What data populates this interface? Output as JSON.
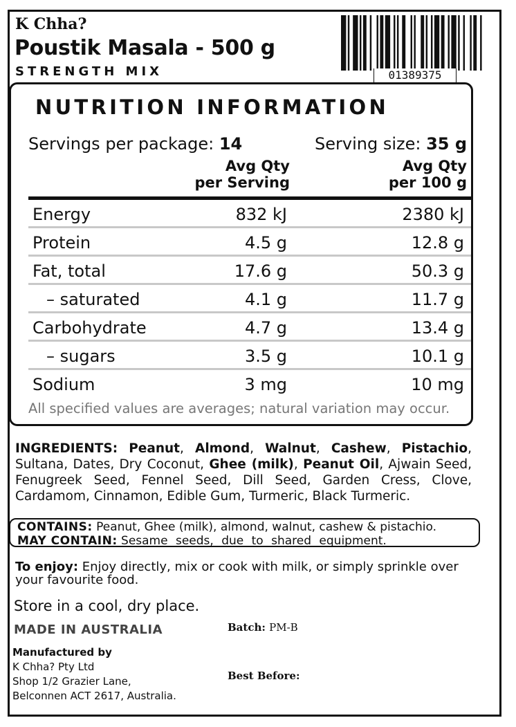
{
  "brand": "K Chha?",
  "product_title": "Poustik Masala - 500 g",
  "subtitle": "STRENGTH MIX",
  "barcode_number": "01389375",
  "nutrition": {
    "title": "NUTRITION INFORMATION",
    "servings_label": "Servings per package: ",
    "servings_value": "14",
    "serving_size_label": "Serving size: ",
    "serving_size_value": "35 g",
    "col_serving_line1": "Avg Qty",
    "col_serving_line2": "per Serving",
    "col_100g_line1": "Avg Qty",
    "col_100g_line2": "per 100 g",
    "rows": [
      {
        "name": "Energy",
        "per_serving": "832 kJ",
        "per_100g": "2380 kJ"
      },
      {
        "name": "Protein",
        "per_serving": "4.5 g",
        "per_100g": "12.8 g"
      },
      {
        "name": "Fat, total",
        "per_serving": "17.6 g",
        "per_100g": "50.3 g"
      },
      {
        "name": "– saturated",
        "per_serving": "4.1 g",
        "per_100g": "11.7 g"
      },
      {
        "name": "Carbohydrate",
        "per_serving": "4.7 g",
        "per_100g": "13.4 g"
      },
      {
        "name": "– sugars",
        "per_serving": "3.5 g",
        "per_100g": "10.1 g"
      },
      {
        "name": "Sodium",
        "per_serving": "3 mg",
        "per_100g": "10 mg"
      }
    ],
    "footnote": "All specified values are averages; natural variation may occur."
  },
  "ingredients": {
    "label": "INGREDIENTS:",
    "parts": [
      {
        "t": "Peanut",
        "b": true
      },
      {
        "t": ", ",
        "b": false
      },
      {
        "t": "Almond",
        "b": true
      },
      {
        "t": ", ",
        "b": false
      },
      {
        "t": "Walnut",
        "b": true
      },
      {
        "t": ", ",
        "b": false
      },
      {
        "t": "Cashew",
        "b": true
      },
      {
        "t": ", ",
        "b": false
      },
      {
        "t": "Pistachio",
        "b": true
      },
      {
        "t": ", Sultana, Dates, Dry Coconut, ",
        "b": false
      },
      {
        "t": "Ghee (milk)",
        "b": true
      },
      {
        "t": ", ",
        "b": false
      },
      {
        "t": "Peanut Oil",
        "b": true
      },
      {
        "t": ", Ajwain Seed, Fenugreek Seed, Fennel Seed, Dill Seed, Garden Cress, Clove, Cardamom, Cinnamon, Edible Gum, Turmeric, Black Turmeric.",
        "b": false
      }
    ]
  },
  "contains": {
    "label": "CONTAINS:",
    "text": "Peanut, Ghee (milk), almond, walnut, cashew & pistachio.",
    "may_label": "MAY CONTAIN:",
    "may_text": "Sesame seeds, due to shared equipment."
  },
  "enjoy": {
    "label": "To enjoy:",
    "text": "Enjoy directly, mix or cook with milk, or simply sprinkle over your favourite food."
  },
  "storage": "Store in a cool, dry place.",
  "origin": "MADE IN AUSTRALIA",
  "batch_label": "Batch:",
  "batch_value": "PM-B",
  "manufacturer": {
    "heading": "Manufactured by",
    "lines": [
      "K Chha? Pty Ltd",
      "Shop 1/2 Grazier Lane,",
      "Belconnen ACT 2617, Australia."
    ]
  },
  "best_before_label": "Best Before:"
}
